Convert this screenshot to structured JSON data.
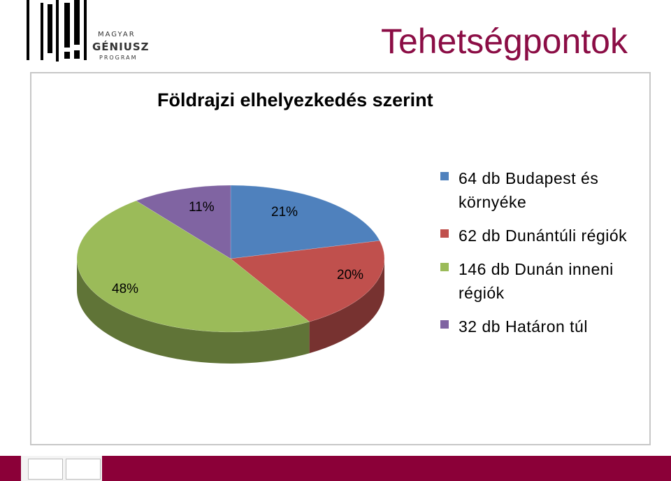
{
  "header": {
    "page_title": "Tehetségpontok",
    "logo_lines": [
      "MAGYAR",
      "GÉNIUSZ",
      "PROGRAM"
    ]
  },
  "chart_data": {
    "type": "pie",
    "title": "Földrajzi elhelyezkedés szerint",
    "categories": [
      "64 db Budapest és környéke",
      "62 db Dunántúli régiók",
      "146 db Dunán inneni régiók",
      "32 db Határon túl"
    ],
    "values": [
      64,
      62,
      146,
      32
    ],
    "percent_labels": [
      "21%",
      "20%",
      "48%",
      "11%"
    ],
    "colors": [
      "#4f81bd",
      "#c0504d",
      "#9bbb59",
      "#8064a2"
    ],
    "legend_position": "right"
  },
  "footer": {
    "colors": {
      "bar": "#8b0038"
    }
  }
}
